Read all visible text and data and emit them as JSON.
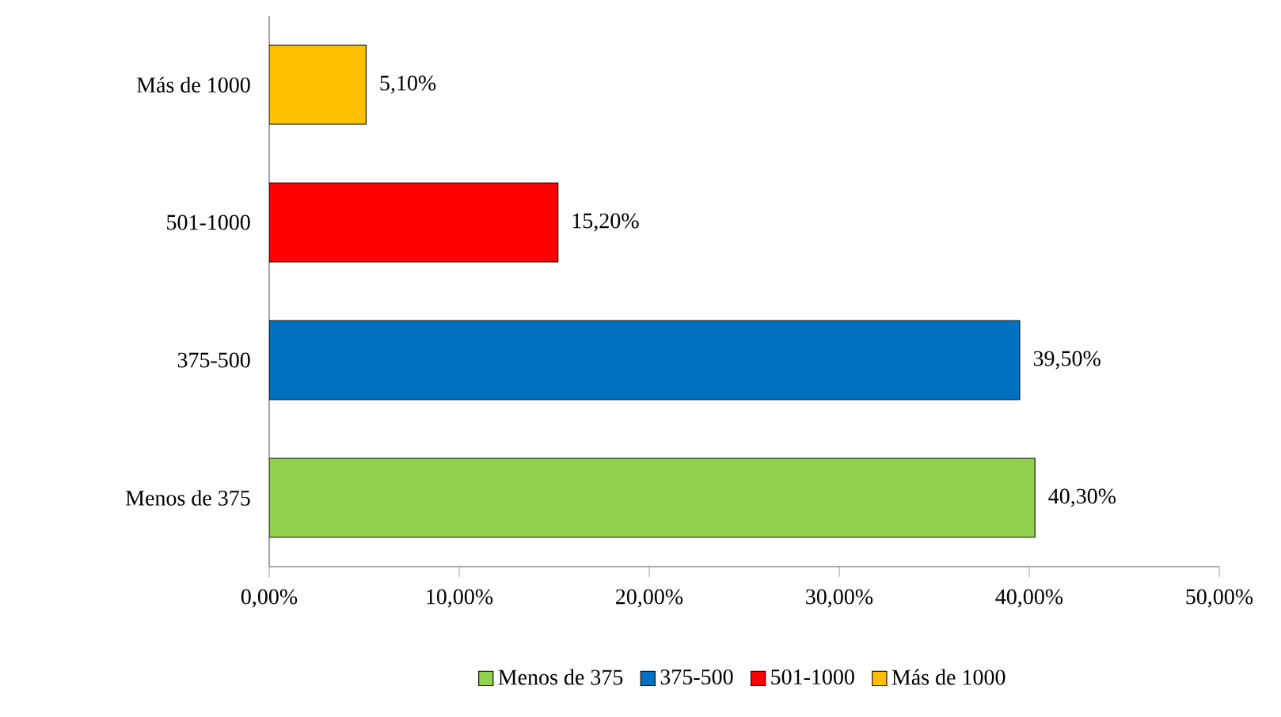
{
  "chart_data": {
    "type": "bar",
    "orientation": "horizontal",
    "categories": [
      "Más de 1000",
      "501-1000",
      "375-500",
      "Menos de 375"
    ],
    "series": [
      {
        "name": "Menos de 375",
        "color": "#92d050",
        "values": [
          null,
          null,
          null,
          40.3
        ],
        "value_labels": [
          null,
          null,
          null,
          "40,30%"
        ]
      },
      {
        "name": "375-500",
        "color": "#0070c0",
        "values": [
          null,
          null,
          39.5,
          null
        ],
        "value_labels": [
          null,
          null,
          "39,50%",
          null
        ]
      },
      {
        "name": "501-1000",
        "color": "#ff0000",
        "values": [
          null,
          15.2,
          null,
          null
        ],
        "value_labels": [
          null,
          "15,20%",
          null,
          null
        ]
      },
      {
        "name": "Más de 1000",
        "color": "#ffc000",
        "values": [
          5.1,
          null,
          null,
          null
        ],
        "value_labels": [
          "5,10%",
          null,
          null,
          null
        ]
      }
    ],
    "xlim": [
      0,
      50
    ],
    "xticks": [
      {
        "value": 0,
        "label": "0,00%"
      },
      {
        "value": 10,
        "label": "10,00%"
      },
      {
        "value": 20,
        "label": "20,00%"
      },
      {
        "value": 30,
        "label": "30,00%"
      },
      {
        "value": 40,
        "label": "40,00%"
      },
      {
        "value": 50,
        "label": "50,00%"
      }
    ],
    "legend": "bottom"
  }
}
